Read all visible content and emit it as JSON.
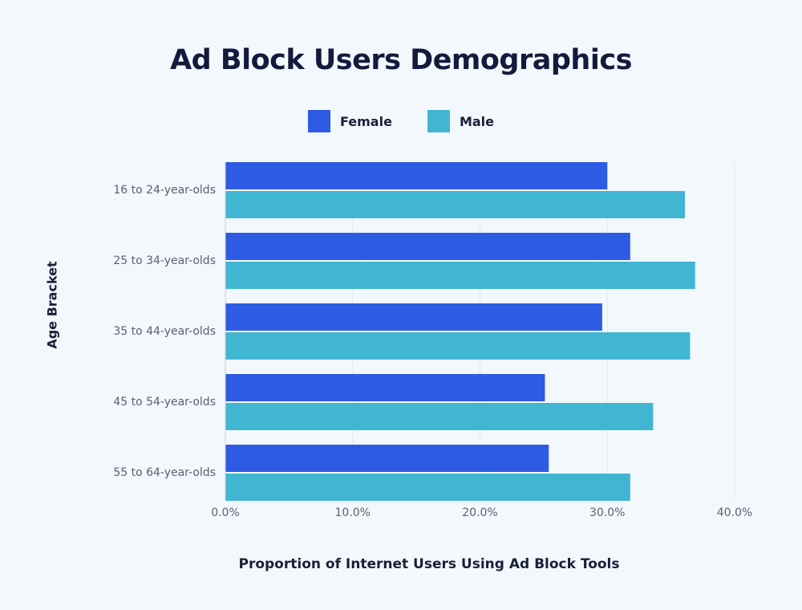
{
  "chart_data": {
    "type": "bar",
    "orientation": "horizontal",
    "title": "Ad Block Users Demographics",
    "xlabel": "Proportion of Internet Users Using Ad Block Tools",
    "ylabel": "Age Bracket",
    "categories": [
      "16 to 24-year-olds",
      "25 to 34-year-olds",
      "35 to 44-year-olds",
      "45 to 54-year-olds",
      "55 to 64-year-olds"
    ],
    "series": [
      {
        "name": "Female",
        "color": "#2d5be3",
        "values": [
          30.0,
          31.8,
          29.6,
          25.1,
          25.4
        ]
      },
      {
        "name": "Male",
        "color": "#41b6d3",
        "values": [
          36.1,
          36.9,
          36.5,
          33.6,
          31.8
        ]
      }
    ],
    "xlim": [
      0,
      40
    ],
    "xticks": [
      "0.0%",
      "10.0%",
      "20.0%",
      "30.0%",
      "40.0%"
    ],
    "xtick_values": [
      0,
      10,
      20,
      30,
      40
    ],
    "grid": true,
    "legend_position": "top"
  }
}
